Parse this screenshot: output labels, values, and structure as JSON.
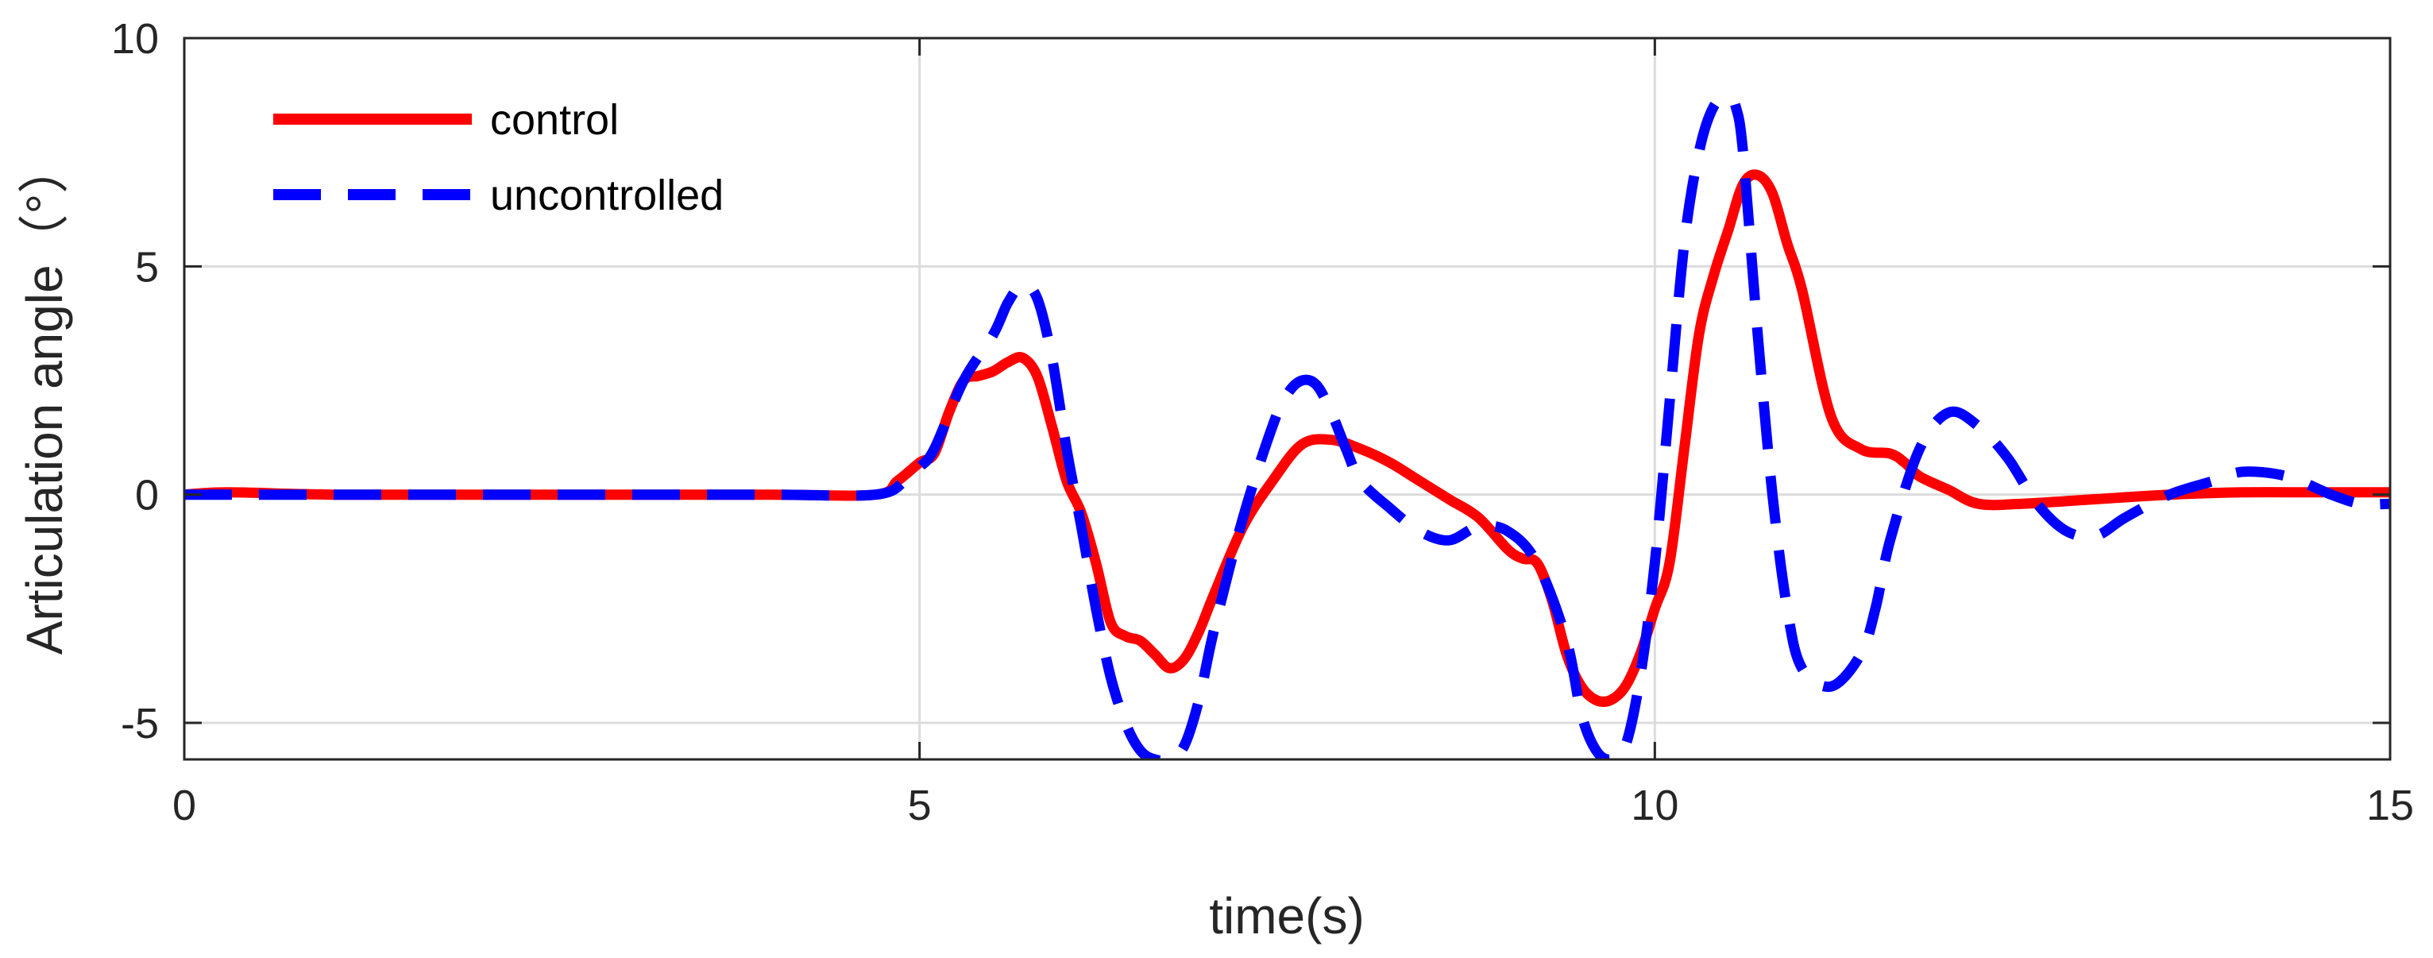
{
  "chart_data": {
    "type": "line",
    "xlabel": "time(s)",
    "ylabel": "Articulation angle（°）",
    "xlim": [
      0,
      15
    ],
    "ylim": [
      -5.8,
      10
    ],
    "xticks": [
      0,
      5,
      10,
      15
    ],
    "xtick_labels": [
      "0",
      "5",
      "10",
      "15"
    ],
    "yticks": [
      -5,
      0,
      5,
      10
    ],
    "ytick_labels": [
      "-5",
      "0",
      "5",
      "10"
    ],
    "grid": true,
    "legend_position": "top-left",
    "series": [
      {
        "name": "control",
        "color": "#ff0000",
        "line_style": "solid",
        "x": [
          0,
          0.3,
          1,
          2,
          3,
          4,
          4.7,
          4.85,
          5.0,
          5.1,
          5.2,
          5.3,
          5.4,
          5.5,
          5.6,
          5.7,
          5.8,
          5.9,
          6.0,
          6.1,
          6.2,
          6.3,
          6.4,
          6.5,
          6.6,
          6.7,
          6.8,
          6.9,
          7.0,
          7.2,
          7.4,
          7.6,
          7.8,
          8.0,
          8.2,
          8.4,
          8.6,
          8.8,
          9.0,
          9.1,
          9.2,
          9.3,
          9.4,
          9.5,
          9.6,
          9.7,
          9.8,
          9.9,
          10.0,
          10.1,
          10.2,
          10.3,
          10.4,
          10.5,
          10.6,
          10.7,
          10.8,
          10.9,
          11.0,
          11.2,
          11.4,
          11.6,
          11.7,
          11.8,
          12.0,
          12.2,
          12.5,
          13.0,
          13.5,
          14.0,
          14.5,
          15.0
        ],
        "y": [
          0,
          0.05,
          0,
          0,
          0,
          0,
          0,
          0.3,
          0.7,
          0.9,
          1.8,
          2.5,
          2.6,
          2.7,
          2.9,
          3.0,
          2.6,
          1.5,
          0.3,
          -0.4,
          -1.5,
          -2.8,
          -3.1,
          -3.2,
          -3.5,
          -3.8,
          -3.6,
          -3.0,
          -2.2,
          -0.7,
          0.3,
          1.1,
          1.2,
          1.0,
          0.7,
          0.3,
          -0.1,
          -0.5,
          -1.2,
          -1.4,
          -1.5,
          -2.3,
          -3.5,
          -4.2,
          -4.5,
          -4.5,
          -4.2,
          -3.5,
          -2.5,
          -1.5,
          1.0,
          3.5,
          4.8,
          5.8,
          6.8,
          7.0,
          6.6,
          5.5,
          4.5,
          1.7,
          1.0,
          0.9,
          0.7,
          0.4,
          0.1,
          -0.2,
          -0.2,
          -0.1,
          0,
          0.05,
          0.05,
          0.05
        ]
      },
      {
        "name": "uncontrolled",
        "color": "#0000ff",
        "line_style": "dashed",
        "x": [
          0,
          1,
          2,
          3,
          4,
          4.7,
          4.9,
          5.0,
          5.1,
          5.3,
          5.5,
          5.6,
          5.7,
          5.8,
          5.9,
          6.0,
          6.1,
          6.2,
          6.3,
          6.4,
          6.5,
          6.6,
          6.7,
          6.8,
          6.9,
          7.0,
          7.2,
          7.4,
          7.5,
          7.6,
          7.7,
          7.8,
          7.9,
          8.0,
          8.2,
          8.4,
          8.6,
          8.8,
          9.0,
          9.2,
          9.4,
          9.5,
          9.6,
          9.7,
          9.8,
          9.9,
          10.0,
          10.1,
          10.2,
          10.3,
          10.4,
          10.5,
          10.55,
          10.6,
          10.7,
          10.8,
          10.9,
          11.0,
          11.2,
          11.4,
          11.5,
          11.6,
          11.8,
          12.0,
          12.2,
          12.4,
          12.6,
          12.8,
          13.0,
          13.2,
          13.5,
          13.8,
          14.0,
          14.3,
          14.6,
          14.8,
          15.0
        ],
        "y": [
          0,
          0,
          0,
          0,
          0,
          0,
          0.3,
          0.6,
          1.0,
          2.5,
          3.5,
          4.2,
          4.6,
          4.3,
          3.0,
          1.0,
          -0.7,
          -2.5,
          -4.0,
          -5.0,
          -5.6,
          -5.8,
          -5.8,
          -5.5,
          -4.5,
          -3.0,
          -0.5,
          1.5,
          2.2,
          2.5,
          2.4,
          1.8,
          1.0,
          0.3,
          -0.3,
          -0.8,
          -1.0,
          -0.7,
          -0.8,
          -1.5,
          -3.2,
          -4.8,
          -5.6,
          -5.8,
          -5.5,
          -4.0,
          -1.5,
          2.0,
          5.5,
          7.5,
          8.5,
          8.7,
          8.5,
          7.5,
          3.5,
          0.0,
          -2.5,
          -3.8,
          -4.2,
          -3.5,
          -2.5,
          -1.0,
          1.0,
          1.8,
          1.5,
          0.8,
          -0.2,
          -0.8,
          -0.9,
          -0.5,
          0.0,
          0.3,
          0.5,
          0.4,
          0.0,
          -0.2,
          -0.2
        ]
      }
    ]
  }
}
